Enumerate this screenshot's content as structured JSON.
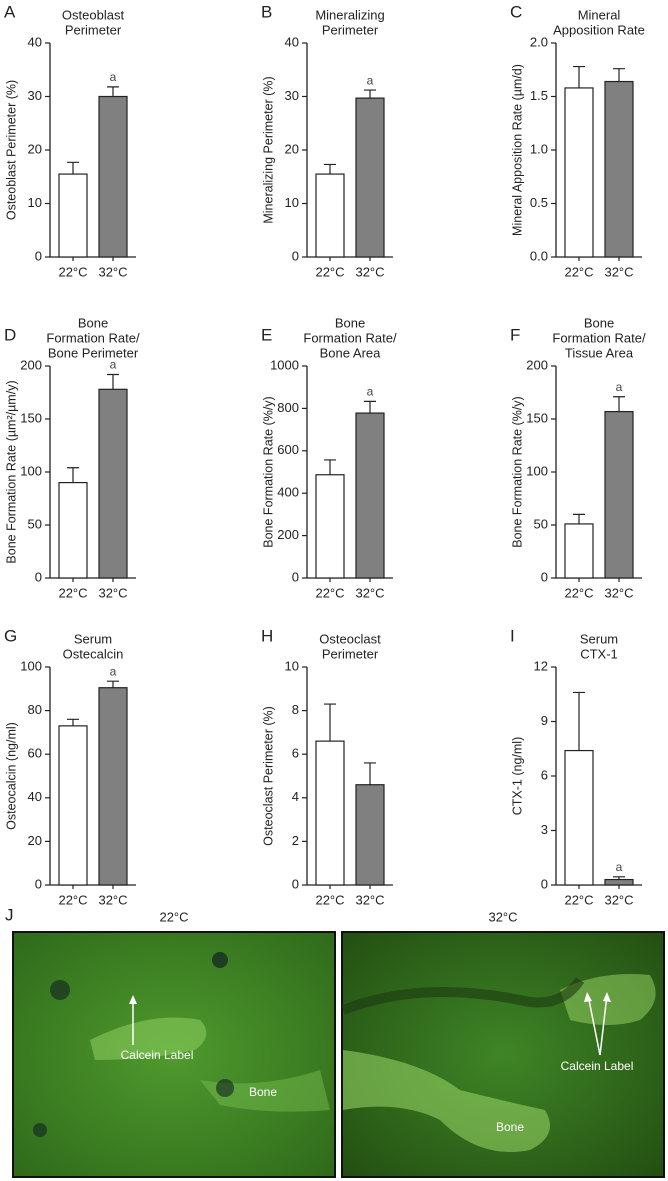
{
  "chart_data": [
    {
      "type": "bar",
      "panel": "A",
      "title": [
        "Osteoblast",
        "Perimeter"
      ],
      "y_label": "Osteoblast Perimeter (%)",
      "categories": [
        "22°C",
        "32°C"
      ],
      "values": [
        15.5,
        30
      ],
      "errors": [
        2.2,
        1.8
      ],
      "colors": [
        "#ffffff",
        "#808080"
      ],
      "annotations": [
        null,
        "a"
      ],
      "ylim": [
        0,
        40
      ],
      "yticks": [
        0,
        10,
        20,
        30,
        40
      ]
    },
    {
      "type": "bar",
      "panel": "B",
      "title": [
        "Mineralizing",
        "Perimeter"
      ],
      "y_label": "Mineralizing Perimeter (%)",
      "categories": [
        "22°C",
        "32°C"
      ],
      "values": [
        15.5,
        29.7
      ],
      "errors": [
        1.8,
        1.5
      ],
      "colors": [
        "#ffffff",
        "#808080"
      ],
      "annotations": [
        null,
        "a"
      ],
      "ylim": [
        0,
        40
      ],
      "yticks": [
        0,
        10,
        20,
        30,
        40
      ]
    },
    {
      "type": "bar",
      "panel": "C",
      "title": [
        "Mineral",
        "Apposition Rate"
      ],
      "y_label": "Mineral Apposition Rate (µm/d)",
      "categories": [
        "22°C",
        "32°C"
      ],
      "values": [
        1.58,
        1.64
      ],
      "errors": [
        0.2,
        0.12
      ],
      "colors": [
        "#ffffff",
        "#808080"
      ],
      "annotations": [
        null,
        null
      ],
      "ylim": [
        0,
        2
      ],
      "yticks": [
        {
          "value": 0,
          "label": "0.0"
        },
        0.5,
        {
          "value": 1,
          "label": "1.0"
        },
        1.5,
        {
          "value": 2,
          "label": "2.0"
        }
      ]
    },
    {
      "type": "bar",
      "panel": "D",
      "title": [
        "Bone",
        "Formation Rate/",
        "Bone Perimeter"
      ],
      "y_label": "Bone Formation Rate (µm²/µm/y)",
      "categories": [
        "22°C",
        "32°C"
      ],
      "values": [
        90,
        178
      ],
      "errors": [
        14,
        14
      ],
      "colors": [
        "#ffffff",
        "#808080"
      ],
      "annotations": [
        null,
        "a"
      ],
      "ylim": [
        0,
        200
      ],
      "yticks": [
        0,
        50,
        100,
        150,
        200
      ]
    },
    {
      "type": "bar",
      "panel": "E",
      "title": [
        "Bone",
        "Formation Rate/",
        "Bone Area"
      ],
      "y_label": "Bone Formation Rate (%/y)",
      "categories": [
        "22°C",
        "32°C"
      ],
      "values": [
        487,
        778
      ],
      "errors": [
        70,
        55
      ],
      "colors": [
        "#ffffff",
        "#808080"
      ],
      "annotations": [
        null,
        "a"
      ],
      "ylim": [
        0,
        1000
      ],
      "yticks": [
        0,
        200,
        400,
        600,
        800,
        1000
      ]
    },
    {
      "type": "bar",
      "panel": "F",
      "title": [
        "Bone",
        "Formation Rate/",
        "Tissue Area"
      ],
      "y_label": "Bone Formation Rate (%/y)",
      "categories": [
        "22°C",
        "32°C"
      ],
      "values": [
        51,
        157
      ],
      "errors": [
        9,
        14
      ],
      "colors": [
        "#ffffff",
        "#808080"
      ],
      "annotations": [
        null,
        "a"
      ],
      "ylim": [
        0,
        200
      ],
      "yticks": [
        0,
        50,
        100,
        150,
        200
      ]
    },
    {
      "type": "bar",
      "panel": "G",
      "title": [
        "Serum",
        "Ostecalcin"
      ],
      "y_label": "Osteocalcin (ng/ml)",
      "categories": [
        "22°C",
        "32°C"
      ],
      "values": [
        73,
        90.5
      ],
      "errors": [
        3,
        3
      ],
      "colors": [
        "#ffffff",
        "#808080"
      ],
      "annotations": [
        null,
        "a"
      ],
      "ylim": [
        0,
        100
      ],
      "yticks": [
        0,
        20,
        40,
        60,
        80,
        100
      ]
    },
    {
      "type": "bar",
      "panel": "H",
      "title": [
        "Osteoclast",
        "Perimeter"
      ],
      "y_label": "Osteoclast Perimeter (%)",
      "categories": [
        "22°C",
        "32°C"
      ],
      "values": [
        6.6,
        4.6
      ],
      "errors": [
        1.7,
        1.0
      ],
      "colors": [
        "#ffffff",
        "#808080"
      ],
      "annotations": [
        null,
        null
      ],
      "ylim": [
        0,
        10
      ],
      "yticks": [
        0,
        2,
        4,
        6,
        8,
        10
      ]
    },
    {
      "type": "bar",
      "panel": "I",
      "title": [
        "Serum",
        "CTX-1"
      ],
      "y_label": "CTX-1 (ng/ml)",
      "categories": [
        "22°C",
        "32°C"
      ],
      "values": [
        7.4,
        0.3
      ],
      "errors": [
        3.2,
        0.15
      ],
      "colors": [
        "#ffffff",
        "#808080"
      ],
      "annotations": [
        null,
        "a"
      ],
      "ylim": [
        0,
        12
      ],
      "yticks": [
        0,
        3,
        6,
        9,
        12
      ]
    }
  ],
  "panel_j": {
    "letter": "J",
    "left_title": "22°C",
    "right_title": "32°C",
    "left_label": "Calcein Label",
    "left_bone": "Bone",
    "right_label": "Calcein Label",
    "right_bone": "Bone"
  }
}
